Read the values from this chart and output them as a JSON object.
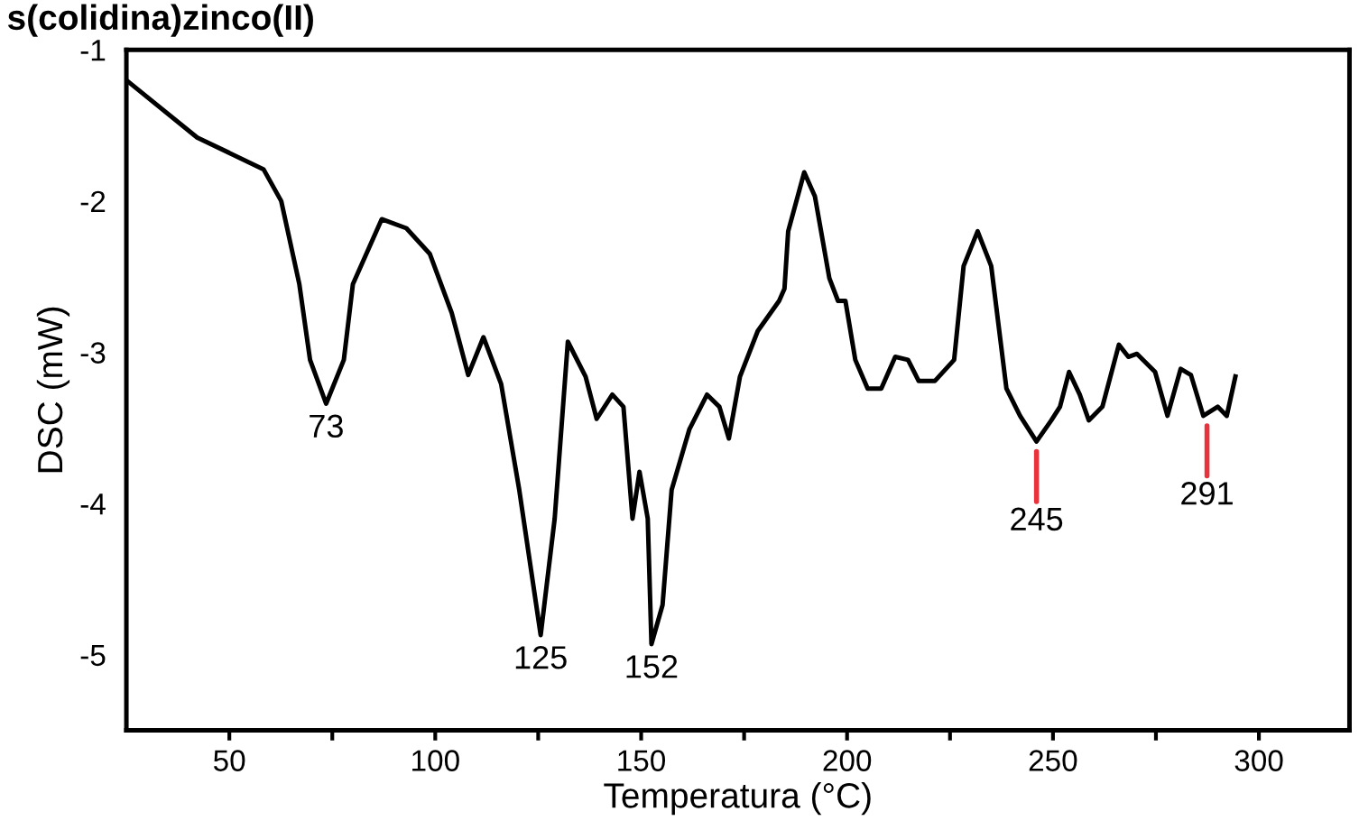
{
  "chart_data": {
    "type": "line",
    "title": "s(colidina)zinco(II)",
    "xlabel": "Temperatura (°C)",
    "ylabel": "DSC (mW)",
    "xlim": [
      25,
      322
    ],
    "xticks": [
      50,
      {
        "value": 75,
        "label": null
      },
      100,
      {
        "value": 125,
        "label": null
      },
      150,
      {
        "value": 175,
        "label": null
      },
      200,
      {
        "value": 225,
        "label": null
      },
      250,
      {
        "value": 275,
        "label": null
      },
      300
    ],
    "ylim": [
      -5.5,
      -1
    ],
    "yticks": [
      -1,
      -2,
      -3,
      -4,
      -5
    ],
    "grid": false,
    "series": [
      {
        "color": "#000000",
        "x": [
          25.4,
          42.2,
          58.3,
          62.6,
          67,
          69.6,
          73.5,
          77.8,
          80,
          87,
          93,
          98.7,
          104,
          108,
          111.7,
          116,
          120.4,
          125.6,
          129,
          132.2,
          136.5,
          139.2,
          143,
          145.7,
          147.9,
          149.6,
          151.6,
          152.5,
          155.2,
          157.4,
          161.7,
          166,
          169,
          171.3,
          174,
          178.3,
          183.5,
          184.8,
          185.7,
          189.6,
          192.2,
          195.7,
          197.8,
          199.6,
          202,
          205,
          208.3,
          211.7,
          214.8,
          217.4,
          221.3,
          224,
          226,
          228.3,
          231.7,
          235,
          238.7,
          242,
          246,
          249.6,
          251.7,
          253.9,
          256.5,
          258.7,
          262,
          266,
          268.3,
          270.4,
          274.8,
          277.8,
          281,
          283.5,
          286.5,
          290,
          292.2,
          294.3
        ],
        "values": [
          -1.21,
          -1.58,
          -1.79,
          -2.0,
          -2.55,
          -3.05,
          -3.34,
          -3.05,
          -2.55,
          -2.12,
          -2.18,
          -2.35,
          -2.74,
          -3.15,
          -2.9,
          -3.21,
          -3.91,
          -4.87,
          -4.1,
          -2.93,
          -3.16,
          -3.44,
          -3.28,
          -3.36,
          -4.1,
          -3.79,
          -4.1,
          -4.93,
          -4.67,
          -3.91,
          -3.51,
          -3.28,
          -3.36,
          -3.57,
          -3.16,
          -2.86,
          -2.66,
          -2.58,
          -2.2,
          -1.81,
          -1.97,
          -2.51,
          -2.66,
          -2.66,
          -3.05,
          -3.24,
          -3.24,
          -3.03,
          -3.05,
          -3.19,
          -3.19,
          -3.11,
          -3.05,
          -2.43,
          -2.2,
          -2.43,
          -3.24,
          -3.42,
          -3.59,
          -3.45,
          -3.36,
          -3.13,
          -3.28,
          -3.45,
          -3.36,
          -2.95,
          -3.03,
          -3.01,
          -3.13,
          -3.42,
          -3.11,
          -3.15,
          -3.42,
          -3.36,
          -3.42,
          -3.16
        ]
      }
    ],
    "annotations": [
      {
        "text": "73",
        "x": 73.5,
        "y": -3.34
      },
      {
        "text": "125",
        "x": 125.6,
        "y": -4.87
      },
      {
        "text": "152",
        "x": 152.5,
        "y": -4.93
      },
      {
        "text": "245",
        "x": 246,
        "y": -3.59
      },
      {
        "text": "291",
        "x": 287.4,
        "y": -3.42
      }
    ]
  }
}
